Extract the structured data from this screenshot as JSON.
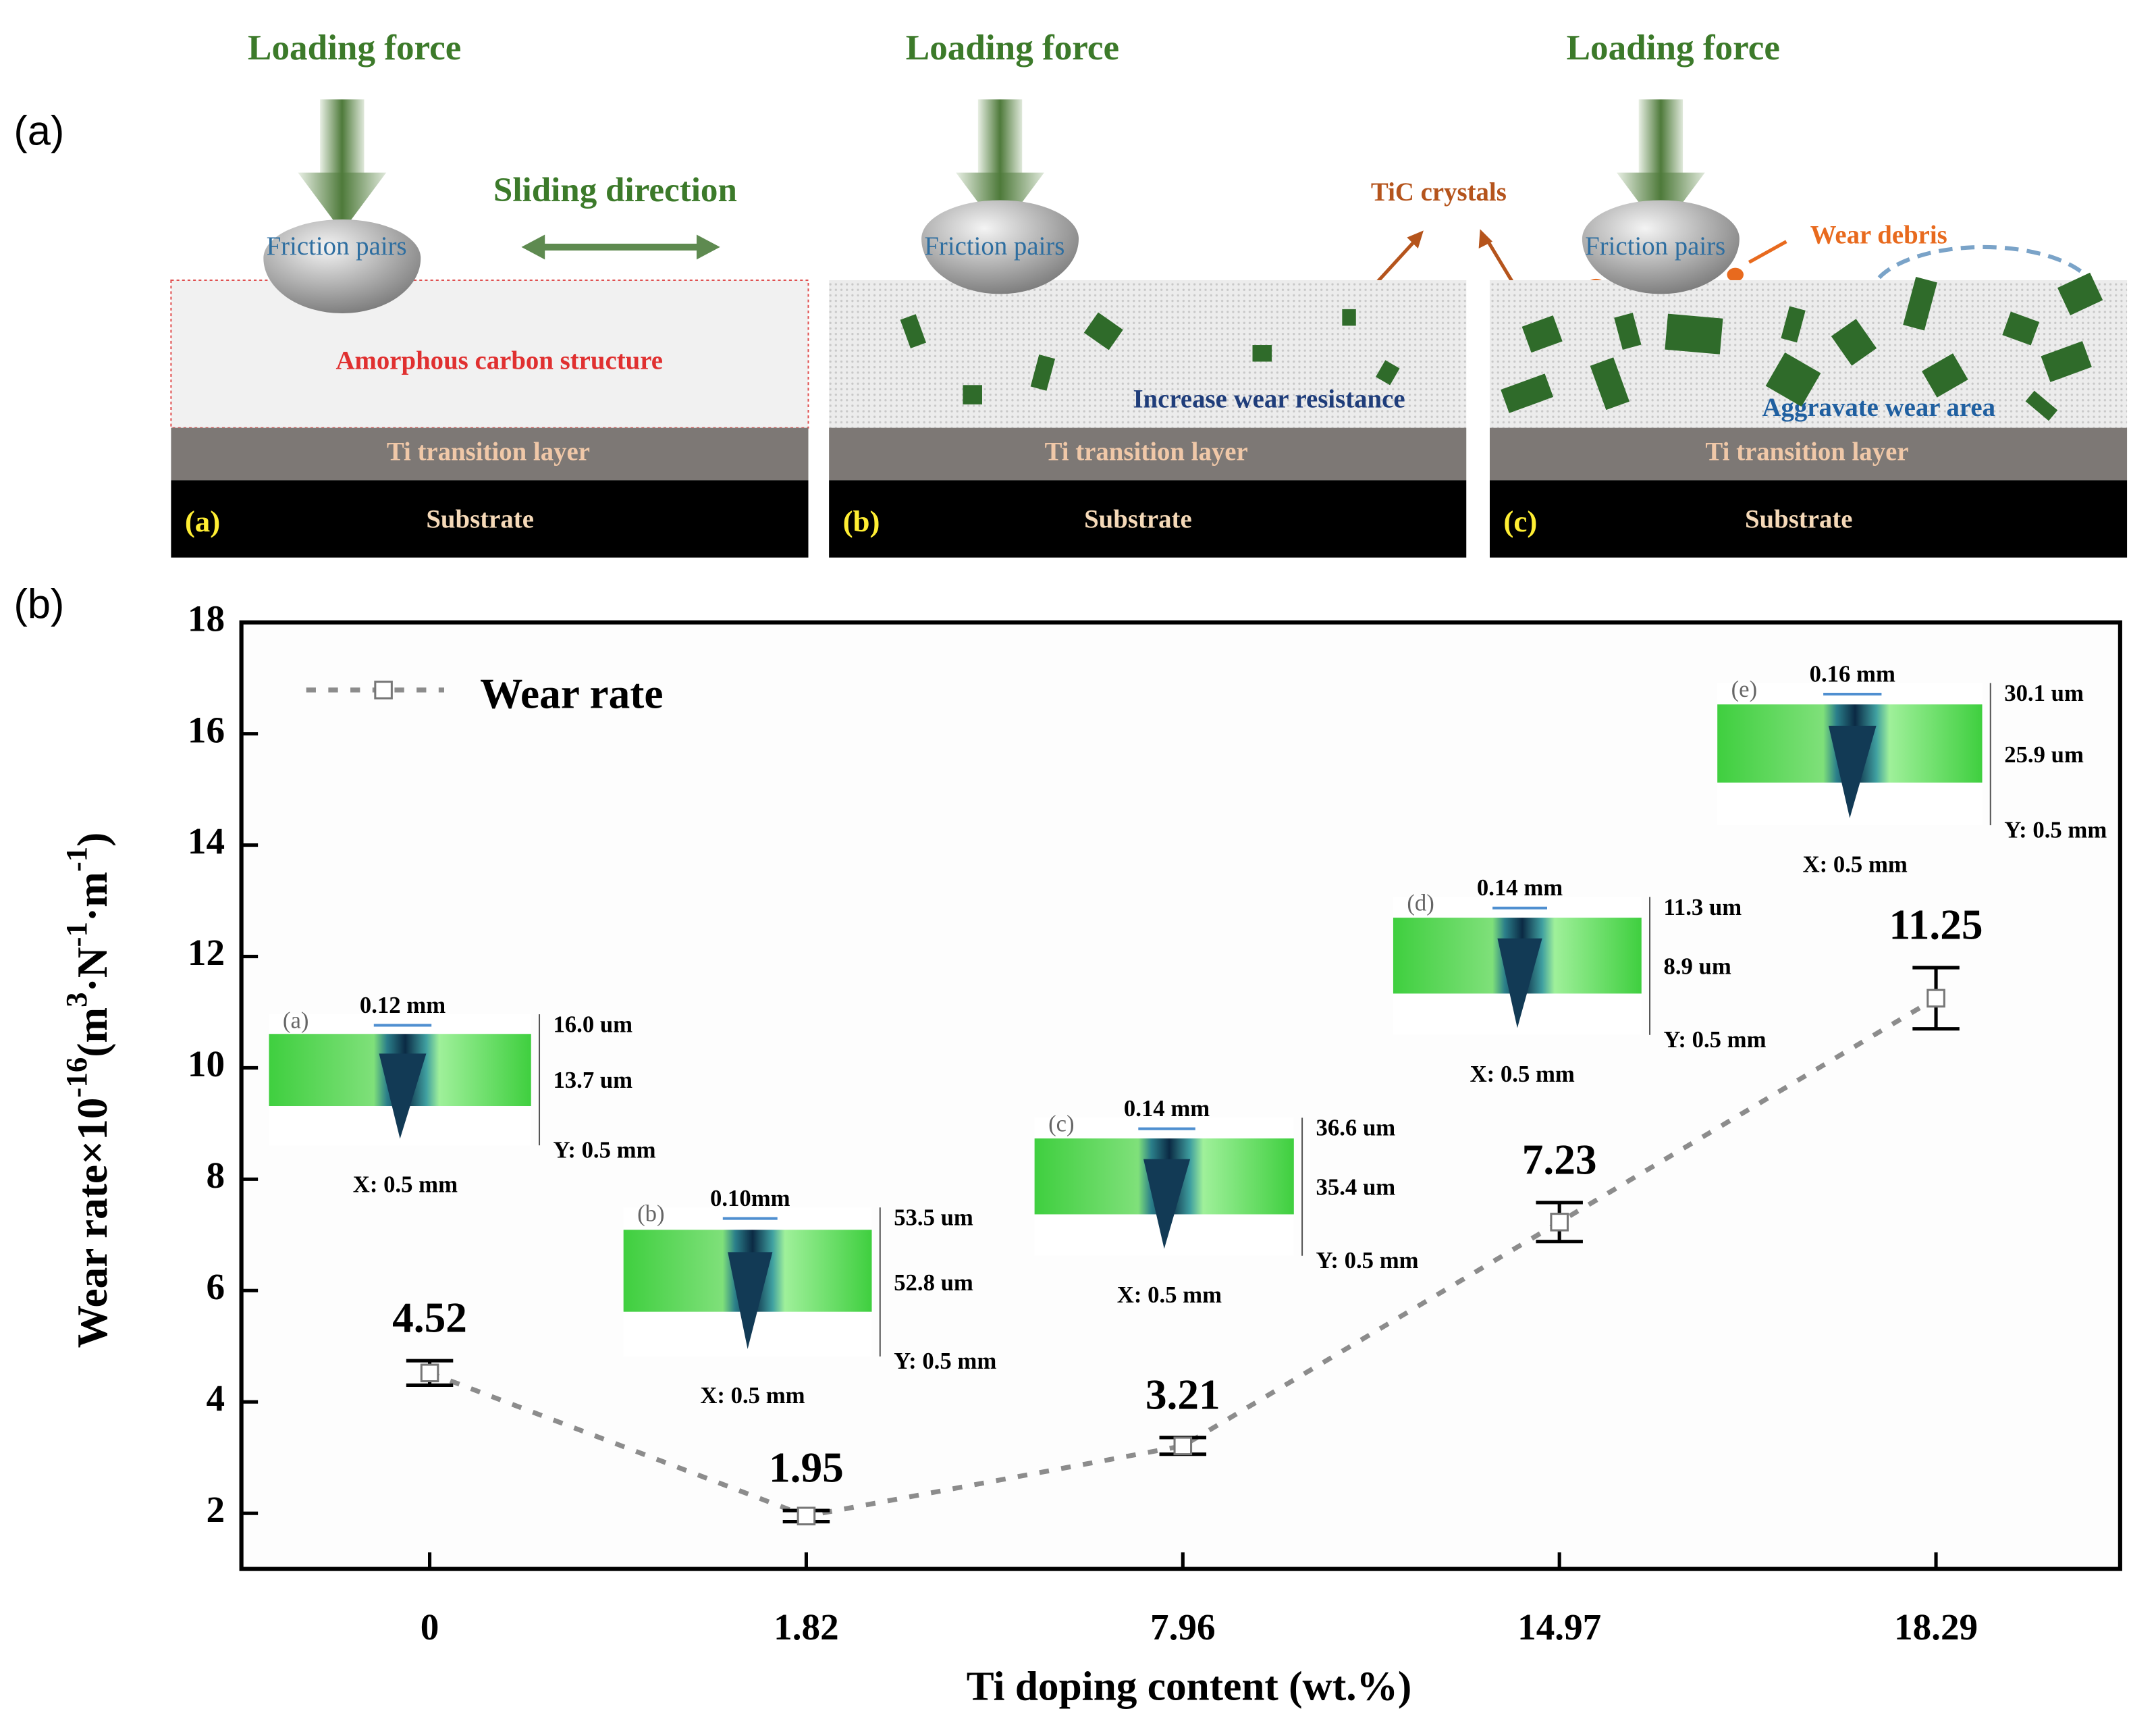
{
  "figure_labels": [
    "(a)",
    "(b)"
  ],
  "schematic": {
    "panels": [
      {
        "label": "(a)",
        "force": "Loading force",
        "friction": "Friction pairs",
        "ti_layer": "Ti transition layer",
        "substrate": "Substrate"
      },
      {
        "label": "(b)",
        "force": "Loading force",
        "friction": "Friction pairs",
        "ti_layer": "Ti transition layer",
        "substrate": "Substrate"
      },
      {
        "label": "(c)",
        "force": "Loading force",
        "friction": "Friction pairs",
        "ti_layer": "Ti transition layer",
        "substrate": "Substrate"
      }
    ],
    "sliding": "Sliding direction",
    "film": "Amorphous carbon structure",
    "tic": "TiC crystals",
    "increase": "Increase wear resistance",
    "debris": "Wear debris",
    "aggravate": "Aggravate wear area"
  },
  "chart_data": {
    "type": "line",
    "x_label": "Ti doping content (wt.%)",
    "y_label": [
      "Wear rate×10",
      "-16",
      "(m",
      "3",
      "·N",
      "-1",
      "·m",
      "-1",
      ")"
    ],
    "categories": [
      "0",
      "1.82",
      "7.96",
      "14.97",
      "18.29"
    ],
    "series": [
      {
        "name": "Wear rate",
        "color": "#8c8c8c",
        "values": [
          4.52,
          1.95,
          3.21,
          7.23,
          11.25
        ],
        "errors": [
          0.22,
          0.1,
          0.15,
          0.35,
          0.55
        ]
      }
    ],
    "ylim": [
      1,
      18
    ],
    "yticks": [
      2,
      4,
      6,
      8,
      10,
      12,
      14,
      16,
      18
    ],
    "legend": "upper left",
    "insets": [
      {
        "label": "(a)",
        "width": "0.12 mm",
        "z_top": "16.0 um",
        "z_mid": "13.7 um",
        "y_scale": "Y: 0.5 mm",
        "x_scale": "X: 0.5 mm"
      },
      {
        "label": "(b)",
        "width": "0.10mm",
        "z_top": "53.5 um",
        "z_mid": "52.8 um",
        "y_scale": "Y: 0.5 mm",
        "x_scale": "X: 0.5 mm"
      },
      {
        "label": "(c)",
        "width": "0.14 mm",
        "z_top": "36.6 um",
        "z_mid": "35.4 um",
        "y_scale": "Y: 0.5 mm",
        "x_scale": "X: 0.5 mm"
      },
      {
        "label": "(d)",
        "width": "0.14 mm",
        "z_top": "11.3 um",
        "z_mid": "8.9 um",
        "y_scale": "Y: 0.5 mm",
        "x_scale": "X: 0.5 mm"
      },
      {
        "label": "(e)",
        "width": "0.16 mm",
        "z_top": "30.1 um",
        "z_mid": "25.9 um",
        "y_scale": "Y: 0.5 mm",
        "x_scale": "X: 0.5 mm"
      }
    ]
  }
}
